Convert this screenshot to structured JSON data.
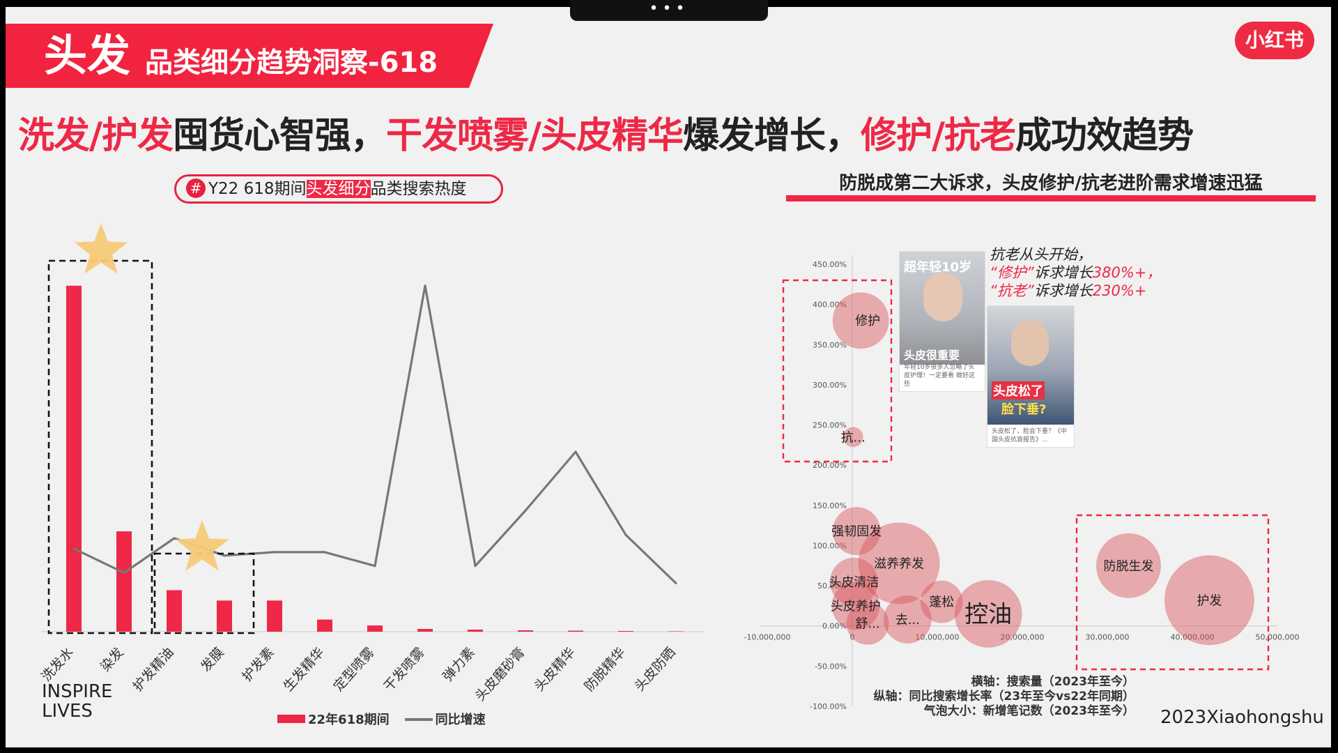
{
  "banner": {
    "main": "头发",
    "sub": "品类细分趋势洞察-618"
  },
  "logo": "小红书",
  "headline": {
    "p1": "洗发/护发",
    "p2": "囤货心智强，",
    "p3": "干发喷雾/头皮精华",
    "p4": "爆发增长，",
    "p5": "修护/抗老",
    "p6": "成功效趋势"
  },
  "left_pill": {
    "hash": "#",
    "pre": "Y22 618期间",
    "hl": "头发细分",
    "post": "品类搜索热度"
  },
  "right_title": "防脱成第二大诉求，头皮修护/抗老进阶需求增速迅猛",
  "inspire": {
    "l1": "INSPIRE",
    "l2": "LIVES"
  },
  "credit": "2023Xiaohongshu",
  "legend": {
    "bar": "22年618期间",
    "line": "同比增速"
  },
  "axis_note": {
    "l1": "横轴：搜索量（2023年至今）",
    "l2": "纵轴：同比搜索增长率（23年至今vs22年同期）",
    "l3": "气泡大小：新增笔记数（2023年至今）"
  },
  "quote": {
    "l1": "抗老从头开始，",
    "l2a": "“修护”",
    "l2b": "诉求增长",
    "l2c": "380%+，",
    "l3a": "“抗老”",
    "l3b": "诉求增长",
    "l3c": "230%+"
  },
  "thumbs": {
    "t1_overlay": "超年轻10岁",
    "t1_overlay2": "头皮很重要",
    "t1_cap": "年轻10岁很多人忽略了头皮护理！一定要看 做好这些",
    "t2_overlay": "头皮松了",
    "t2_overlay2": "脸下垂?",
    "t2_cap": "头皮松了，脸会下垂？《中国头皮抗衰报告》..."
  },
  "colors": {
    "accent": "#ee2846",
    "line": "#777777",
    "bubble": "#d9545c",
    "star": "#f6c978"
  },
  "chart_data": [
    {
      "type": "bar",
      "title": "",
      "categories": [
        "洗发水",
        "染发",
        "护发精油",
        "发膜",
        "护发素",
        "生发精华",
        "定型喷雾",
        "干发喷雾",
        "弹力素",
        "头皮磨砂膏",
        "头皮精华",
        "防脱精华",
        "头皮防晒"
      ],
      "series": [
        {
          "name": "22年618期间",
          "type": "bar",
          "values": [
            100,
            29,
            12,
            9,
            9,
            3.5,
            1.8,
            0.8,
            0.6,
            0.4,
            0.3,
            0.2,
            0.1
          ]
        },
        {
          "name": "同比增速",
          "type": "line",
          "values": [
            24,
            17,
            27,
            22,
            23,
            23,
            19,
            100,
            19,
            35,
            52,
            28,
            14
          ]
        }
      ],
      "ylim": [
        0,
        105
      ],
      "highlight_groups": [
        [
          "洗发水",
          "染发"
        ],
        [
          "护发精油",
          "发膜"
        ]
      ]
    },
    {
      "type": "scatter",
      "subtype": "bubble",
      "xlabel": "横轴：搜索量（2023年至今）",
      "ylabel": "纵轴：同比搜索增长率（23年至今vs22年同期）",
      "xlim": [
        -10000000,
        50000000
      ],
      "ylim": [
        -100,
        450
      ],
      "x_ticks": [
        "-10,000,000",
        "0",
        "10,000,000",
        "20,000,000",
        "30,000,000",
        "40,000,000",
        "50,000,000"
      ],
      "y_ticks": [
        "450.00%",
        "400.00%",
        "350.00%",
        "300.00%",
        "250.00%",
        "200.00%",
        "150.00%",
        "100.00%",
        "50.00%",
        "0.00%",
        "-50.00%",
        "-100.00%"
      ],
      "points": [
        {
          "label": "修护",
          "x": 1000000,
          "y": 380,
          "size": 40
        },
        {
          "label": "抗...",
          "x": 100000,
          "y": 235,
          "size": 14
        },
        {
          "label": "强韧固发",
          "x": 500000,
          "y": 118,
          "size": 34
        },
        {
          "label": "滋养养发",
          "x": 5500000,
          "y": 78,
          "size": 58
        },
        {
          "label": "头皮清洁",
          "x": 200000,
          "y": 55,
          "size": 34
        },
        {
          "label": "头皮养护",
          "x": 400000,
          "y": 25,
          "size": 34
        },
        {
          "label": "蓬松",
          "x": 10500000,
          "y": 30,
          "size": 30
        },
        {
          "label": "舒...",
          "x": 1800000,
          "y": 3,
          "size": 30
        },
        {
          "label": "去...",
          "x": 6500000,
          "y": 8,
          "size": 34
        },
        {
          "label": "控油",
          "x": 16000000,
          "y": 15,
          "size": 48
        },
        {
          "label": "防脱生发",
          "x": 32500000,
          "y": 75,
          "size": 46
        },
        {
          "label": "护发",
          "x": 42000000,
          "y": 32,
          "size": 64
        }
      ]
    }
  ]
}
